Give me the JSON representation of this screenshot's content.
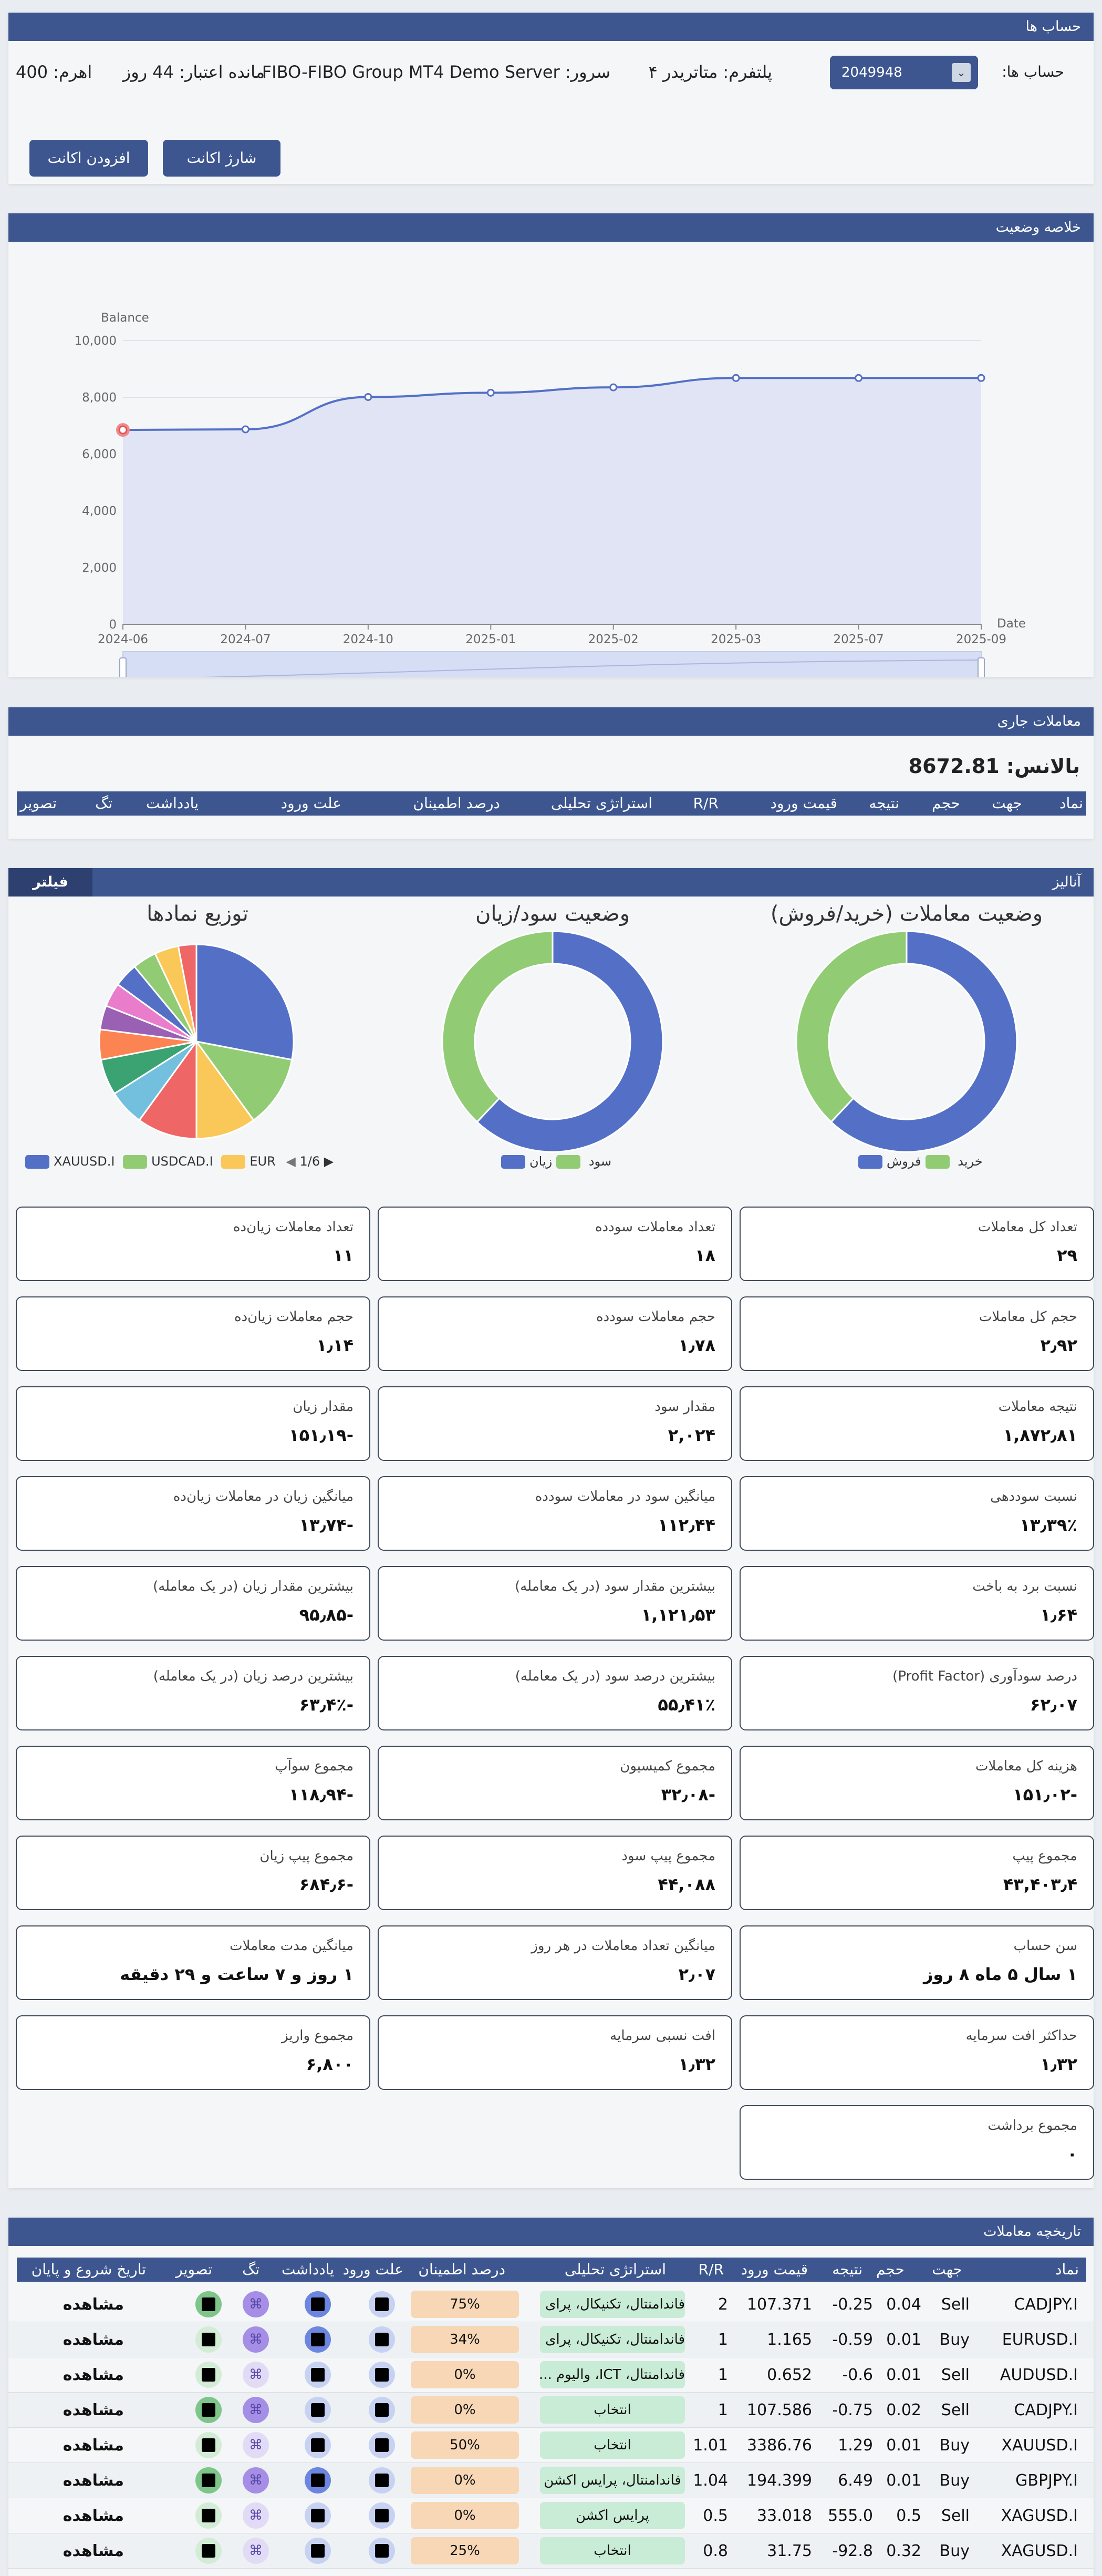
{
  "accounts_panel": {
    "title": "حساب ها",
    "accounts_label": "حساب ها:",
    "selected_account": "2049948",
    "platform_label": "پلتفرم:",
    "platform_value": "متاتریدر ۴",
    "server_label": "سرور:",
    "server_value": "FIBO-FIBO Group MT4 Demo Server",
    "credit_label": "مانده اعتبار:",
    "credit_value": "44 روز",
    "leverage_label": "اهرم:",
    "leverage_value": "400",
    "charge_button": "شارژ اکانت",
    "add_button": "افزودن اکانت"
  },
  "summary_panel": {
    "title": "خلاصه وضعیت"
  },
  "chart_data": {
    "type": "line",
    "ylabel": "Balance",
    "xlabel": "Date",
    "categories": [
      "2024-06",
      "2024-07",
      "2024-10",
      "2025-01",
      "2025-02",
      "2025-03",
      "2025-07",
      "2025-09"
    ],
    "values": [
      6850,
      6870,
      8010,
      8160,
      8350,
      8680,
      8680,
      8680
    ],
    "ylim": [
      0,
      10000
    ],
    "yticks": [
      "0",
      "2,000",
      "4,000",
      "6,000",
      "8,000",
      "10,000"
    ],
    "grid": true,
    "colors": {
      "line": "#5470c6",
      "area": "#e1e4f4"
    }
  },
  "open_trades_panel": {
    "title": "معاملات جاری",
    "balance_label": "بالانس:",
    "balance_value": "8672.81",
    "columns": [
      "نماد",
      "جهت",
      "حجم",
      "نتیجه",
      "قیمت ورود",
      "R/R",
      "استراتژی تحلیلی",
      "درصد اطمینان",
      "علت ورود",
      "یادداشت",
      "تگ",
      "تصویر"
    ]
  },
  "analysis_panel": {
    "title": "آنالیز",
    "filter_button": "فیلتر",
    "donut_trades": {
      "title": "وضعیت معاملات (خرید/فروش)",
      "legend": [
        "خرید",
        "فروش"
      ],
      "values": [
        0.62,
        0.38
      ],
      "colors": [
        "#5470c6",
        "#91cc75"
      ]
    },
    "donut_pl": {
      "title": "وضعیت سود/زیان",
      "legend": [
        "سود",
        "زیان"
      ],
      "values": [
        0.62,
        0.38
      ],
      "colors": [
        "#5470c6",
        "#91cc75"
      ]
    },
    "pie_symbols": {
      "title": "توزیع نمادها",
      "legend": [
        "XAUUSD.I",
        "USDCAD.I",
        "EUR"
      ],
      "pager": "1/6",
      "values": [
        0.28,
        0.12,
        0.1,
        0.1,
        0.06,
        0.06,
        0.05,
        0.04,
        0.04,
        0.04,
        0.04,
        0.04,
        0.03
      ],
      "colors": [
        "#5470c6",
        "#91cc75",
        "#fac858",
        "#ee6666",
        "#73c0de",
        "#3ba272",
        "#fc8452",
        "#9a60b4",
        "#ea7ccc",
        "#5470c6",
        "#91cc75",
        "#fac858",
        "#ee6666"
      ]
    },
    "cards": [
      {
        "label": "تعداد کل معاملات",
        "value": "۲۹"
      },
      {
        "label": "تعداد معاملات سودده",
        "value": "۱۸"
      },
      {
        "label": "تعداد معاملات زیان‌ده",
        "value": "۱۱"
      },
      {
        "label": "حجم کل معاملات",
        "value": "۲٫۹۲"
      },
      {
        "label": "حجم معاملات سودده",
        "value": "۱٫۷۸"
      },
      {
        "label": "حجم معاملات زیان‌ده",
        "value": "۱٫۱۴"
      },
      {
        "label": "نتیجه معاملات",
        "value": "۱,۸۷۲٫۸۱"
      },
      {
        "label": "مقدار سود",
        "value": "۲,۰۲۴"
      },
      {
        "label": "مقدار زیان",
        "value": "-۱۵۱٫۱۹"
      },
      {
        "label": "نسبت سوددهی",
        "value": "۱۳٫۳۹٪"
      },
      {
        "label": "میانگین سود در معاملات سودده",
        "value": "۱۱۲٫۴۴"
      },
      {
        "label": "میانگین زیان در معاملات زیان‌ده",
        "value": "-۱۳٫۷۴"
      },
      {
        "label": "نسبت برد به باخت",
        "value": "۱٫۶۴"
      },
      {
        "label": "بیشترین مقدار سود (در یک معامله)",
        "value": "۱,۱۲۱٫۵۳"
      },
      {
        "label": "بیشترین مقدار زیان (در یک معامله)",
        "value": "-۹۵٫۸۵"
      },
      {
        "label": "درصد سودآوری (Profit Factor)",
        "value": "۶۲٫۰۷"
      },
      {
        "label": "بیشترین درصد سود (در یک معامله)",
        "value": "۵۵٫۴۱٪"
      },
      {
        "label": "بیشترین درصد زیان (در یک معامله)",
        "value": "-۶۳٫۴٪"
      },
      {
        "label": "هزینه کل معاملات",
        "value": "-۱۵۱٫۰۲"
      },
      {
        "label": "مجموع کمیسیون",
        "value": "-۳۲٫۰۸"
      },
      {
        "label": "مجموع سوآپ",
        "value": "-۱۱۸٫۹۴"
      },
      {
        "label": "مجموع پیپ",
        "value": "۴۳,۴۰۳٫۴"
      },
      {
        "label": "مجموع پیپ سود",
        "value": "۴۴,۰۸۸"
      },
      {
        "label": "مجموع پیپ زیان",
        "value": "-۶۸۴٫۶"
      },
      {
        "label": "سن حساب",
        "value": "۱ سال ۵ ماه ۸ روز"
      },
      {
        "label": "میانگین تعداد معاملات در هر روز",
        "value": "۲٫۰۷"
      },
      {
        "label": "میانگین مدت معاملات",
        "value": "۱ روز و ۷ ساعت و ۲۹ دقیقه"
      },
      {
        "label": "حداکثر افت سرمایه",
        "value": "۱٫۳۲"
      },
      {
        "label": "افت نسبی سرمایه",
        "value": "۱٫۳۲"
      },
      {
        "label": "مجموع واریز",
        "value": "۶,۸۰۰"
      },
      {
        "label": "مجموع برداشت",
        "value": "۰"
      }
    ]
  },
  "history_panel": {
    "title": "تاریخچه معاملات",
    "columns": [
      "نماد",
      "جهت",
      "حجم",
      "نتیجه",
      "قیمت ورود",
      "R/R",
      "استراتژی تحلیلی",
      "درصد اطمینان",
      "علت ورود",
      "یادداشت",
      "تگ",
      "تصویر",
      "تاریخ شروع و پایان"
    ],
    "rows": [
      {
        "symbol": "CADJPY.I",
        "dir": "Sell",
        "vol": "0.04",
        "result": "-0.25",
        "price": "107.371",
        "rr": "2",
        "strategy": "فاندامنتال، تکنیکال، پرای ...",
        "conf": "75%",
        "view": "مشاهده",
        "note_active": true,
        "tag_active": true,
        "img_active": true
      },
      {
        "symbol": "EURUSD.I",
        "dir": "Buy",
        "vol": "0.01",
        "result": "-0.59",
        "price": "1.165",
        "rr": "1",
        "strategy": "فاندامنتال، تکنیکال، پرای ...",
        "conf": "34%",
        "view": "مشاهده",
        "note_active": true,
        "tag_active": true,
        "img_active": false
      },
      {
        "symbol": "AUDUSD.I",
        "dir": "Sell",
        "vol": "0.01",
        "result": "-0.6",
        "price": "0.652",
        "rr": "1",
        "strategy": "فاندامنتال، ICT، والیوم ...",
        "conf": "0%",
        "view": "مشاهده",
        "note_active": false,
        "tag_active": false,
        "img_active": false
      },
      {
        "symbol": "CADJPY.I",
        "dir": "Sell",
        "vol": "0.02",
        "result": "-0.75",
        "price": "107.586",
        "rr": "1",
        "strategy": "انتخاب",
        "conf": "0%",
        "view": "مشاهده",
        "note_active": false,
        "tag_active": true,
        "img_active": true
      },
      {
        "symbol": "XAUUSD.I",
        "dir": "Buy",
        "vol": "0.01",
        "result": "1.29",
        "price": "3386.76",
        "rr": "1.01",
        "strategy": "انتخاب",
        "conf": "50%",
        "view": "مشاهده",
        "note_active": false,
        "tag_active": false,
        "img_active": false
      },
      {
        "symbol": "GBPJPY.I",
        "dir": "Buy",
        "vol": "0.01",
        "result": "6.49",
        "price": "194.399",
        "rr": "1.04",
        "strategy": "فاندامنتال، پرایس اکشن",
        "conf": "0%",
        "view": "مشاهده",
        "note_active": true,
        "tag_active": true,
        "img_active": true
      },
      {
        "symbol": "XAGUSD.I",
        "dir": "Sell",
        "vol": "0.5",
        "result": "555.0",
        "price": "33.018",
        "rr": "0.5",
        "strategy": "پرایس اکشن",
        "conf": "0%",
        "view": "مشاهده",
        "note_active": false,
        "tag_active": false,
        "img_active": false
      },
      {
        "symbol": "XAGUSD.I",
        "dir": "Buy",
        "vol": "0.32",
        "result": "-92.8",
        "price": "31.75",
        "rr": "0.8",
        "strategy": "انتخاب",
        "conf": "25%",
        "view": "مشاهده",
        "note_active": false,
        "tag_active": false,
        "img_active": false
      }
    ]
  }
}
